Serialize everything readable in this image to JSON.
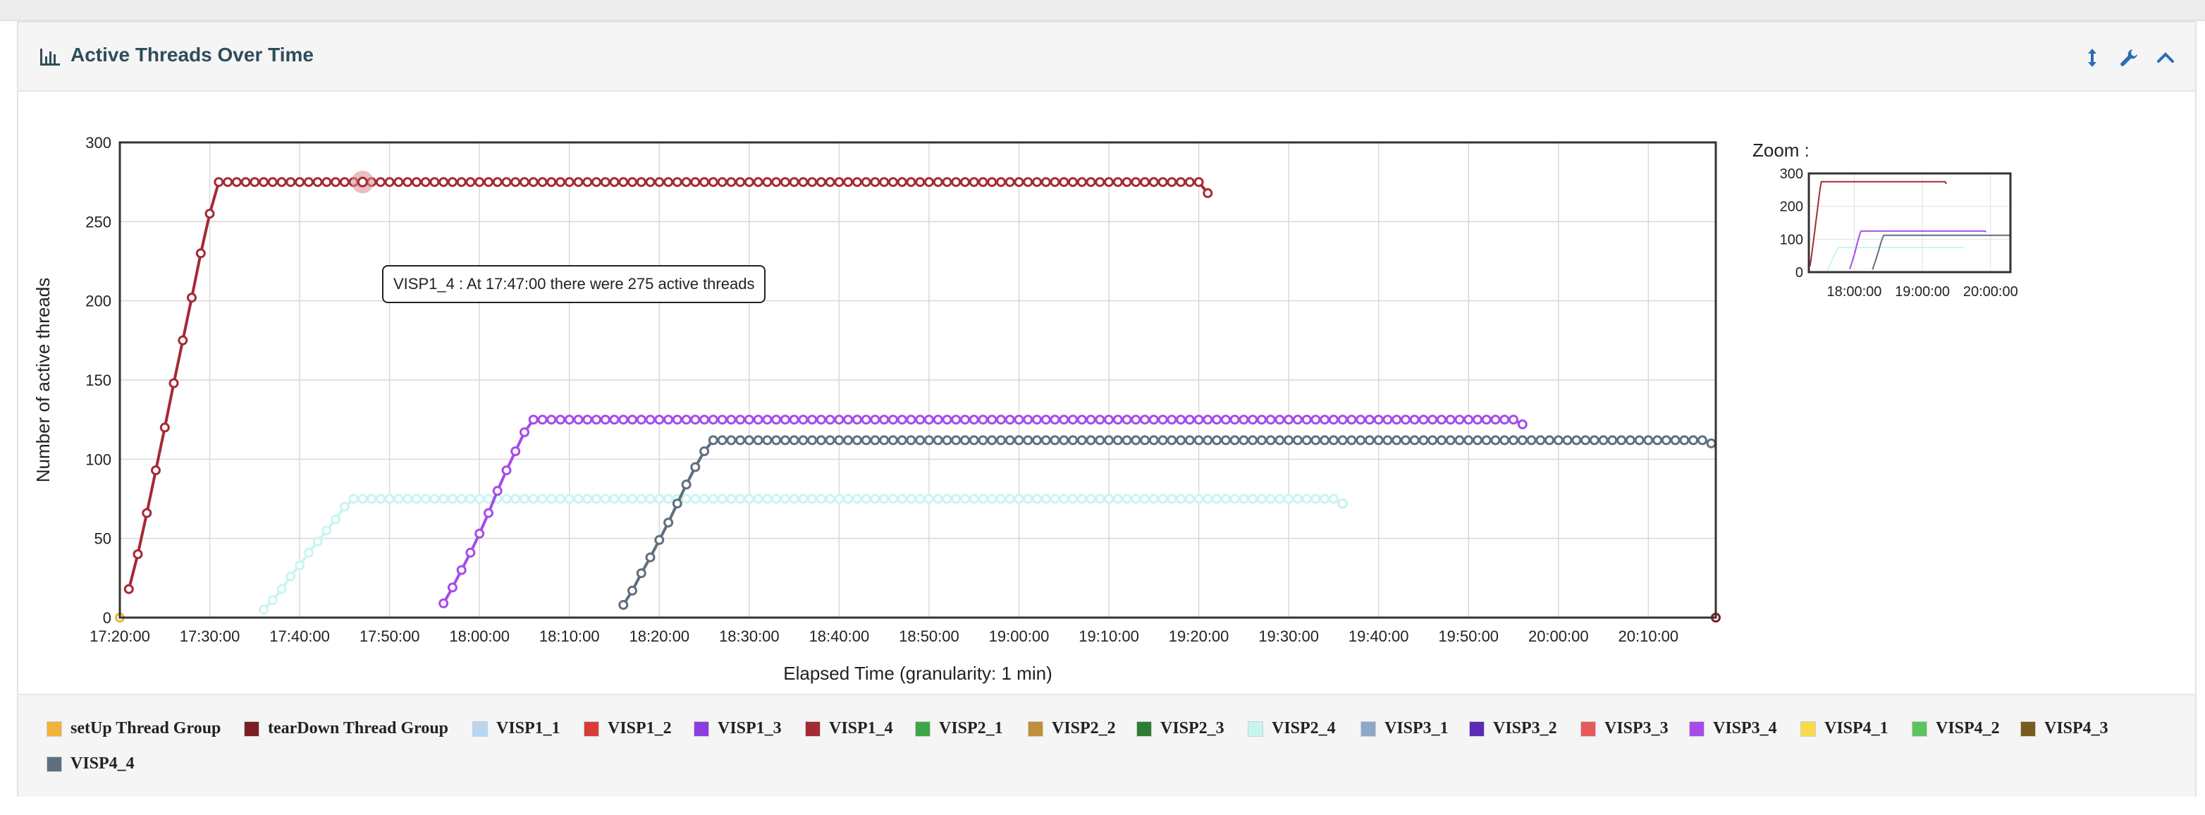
{
  "panel": {
    "title": "Active Threads Over Time",
    "icons": [
      "bar-chart-icon",
      "resize-vertical-icon",
      "wrench-icon",
      "chevron-up-icon"
    ]
  },
  "tooltip": {
    "text": "VISP1_4 : At 17:47:00 there were 275 active threads"
  },
  "zoom": {
    "label": "Zoom :",
    "yticks": [
      "300",
      "200",
      "100",
      "0"
    ],
    "xticks": [
      "18:00:00",
      "19:00:00",
      "20:00:00"
    ],
    "y_range": [
      0,
      300
    ]
  },
  "colors": {
    "plot_border": "#333333",
    "grid": "#d8d8d8",
    "panel_header_bg": "#f5f5f5",
    "title_color": "#2f4c5c"
  },
  "chart_data": {
    "type": "line",
    "xlabel": "Elapsed Time (granularity: 1 min)",
    "ylabel": "Number of active threads",
    "x_range_minutes": [
      0,
      177.5
    ],
    "xlim": [
      "17:20:00",
      "20:17:30"
    ],
    "ylim": [
      0,
      300
    ],
    "yticks": [
      0,
      50,
      100,
      150,
      200,
      250,
      300
    ],
    "xticks": [
      "17:20:00",
      "17:30:00",
      "17:40:00",
      "17:50:00",
      "18:00:00",
      "18:10:00",
      "18:20:00",
      "18:30:00",
      "18:40:00",
      "18:50:00",
      "19:00:00",
      "19:10:00",
      "19:20:00",
      "19:30:00",
      "19:40:00",
      "19:50:00",
      "20:00:00",
      "20:10:00"
    ],
    "grid": true,
    "legend_position": "bottom",
    "series": [
      {
        "name": "setUp Thread Group",
        "color": "#f0b43a",
        "points": [
          [
            "17:20:00",
            0
          ]
        ]
      },
      {
        "name": "tearDown Thread Group",
        "color": "#7b1f26",
        "points": [
          [
            "20:17:30",
            0
          ]
        ]
      },
      {
        "name": "VISP1_1",
        "color": "#b6d6f2",
        "points": []
      },
      {
        "name": "VISP1_2",
        "color": "#d93b3b",
        "points": []
      },
      {
        "name": "VISP1_3",
        "color": "#8a3ee0",
        "points": []
      },
      {
        "name": "VISP1_4",
        "color": "#a52a35",
        "points": [
          [
            "17:21:00",
            18
          ],
          [
            "17:22:00",
            40
          ],
          [
            "17:23:00",
            66
          ],
          [
            "17:24:00",
            93
          ],
          [
            "17:25:00",
            120
          ],
          [
            "17:26:00",
            148
          ],
          [
            "17:27:00",
            175
          ],
          [
            "17:28:00",
            202
          ],
          [
            "17:29:00",
            230
          ],
          [
            "17:30:00",
            255
          ],
          [
            "17:31:00",
            275
          ],
          [
            "19:20:00",
            275
          ],
          [
            "19:21:00",
            268
          ]
        ]
      },
      {
        "name": "VISP2_1",
        "color": "#3ca745",
        "points": []
      },
      {
        "name": "VISP2_2",
        "color": "#c09038",
        "points": []
      },
      {
        "name": "VISP2_3",
        "color": "#2e7d32",
        "points": [
          [
            "19:36:00",
            72
          ]
        ]
      },
      {
        "name": "VISP2_4",
        "color": "#c9f5f1",
        "points": [
          [
            "17:36:00",
            5
          ],
          [
            "17:37:00",
            11
          ],
          [
            "17:38:00",
            18
          ],
          [
            "17:39:00",
            26
          ],
          [
            "17:40:00",
            33
          ],
          [
            "17:41:00",
            41
          ],
          [
            "17:42:00",
            48
          ],
          [
            "17:43:00",
            55
          ],
          [
            "17:44:00",
            62
          ],
          [
            "17:45:00",
            70
          ],
          [
            "17:46:00",
            75
          ],
          [
            "19:35:00",
            75
          ],
          [
            "19:36:00",
            72
          ]
        ]
      },
      {
        "name": "VISP3_1",
        "color": "#8fa8c8",
        "points": []
      },
      {
        "name": "VISP3_2",
        "color": "#5b2bb5",
        "points": []
      },
      {
        "name": "VISP3_3",
        "color": "#e65a5a",
        "points": []
      },
      {
        "name": "VISP3_4",
        "color": "#a64be8",
        "points": [
          [
            "17:56:00",
            9
          ],
          [
            "17:57:00",
            19
          ],
          [
            "17:58:00",
            30
          ],
          [
            "17:59:00",
            41
          ],
          [
            "18:00:00",
            53
          ],
          [
            "18:01:00",
            66
          ],
          [
            "18:02:00",
            80
          ],
          [
            "18:03:00",
            93
          ],
          [
            "18:04:00",
            105
          ],
          [
            "18:05:00",
            117
          ],
          [
            "18:06:00",
            125
          ],
          [
            "19:55:00",
            125
          ],
          [
            "19:56:00",
            122
          ]
        ]
      },
      {
        "name": "VISP4_1",
        "color": "#f7dc4a",
        "points": []
      },
      {
        "name": "VISP4_2",
        "color": "#5cc45c",
        "points": []
      },
      {
        "name": "VISP4_3",
        "color": "#7a5a1e",
        "points": []
      },
      {
        "name": "VISP4_4",
        "color": "#5f6f80",
        "points": [
          [
            "18:16:00",
            8
          ],
          [
            "18:17:00",
            17
          ],
          [
            "18:18:00",
            28
          ],
          [
            "18:19:00",
            38
          ],
          [
            "18:20:00",
            49
          ],
          [
            "18:21:00",
            60
          ],
          [
            "18:22:00",
            72
          ],
          [
            "18:23:00",
            84
          ],
          [
            "18:24:00",
            95
          ],
          [
            "18:25:00",
            105
          ],
          [
            "18:26:00",
            112
          ],
          [
            "20:16:00",
            112
          ],
          [
            "20:17:00",
            110
          ]
        ]
      }
    ]
  }
}
